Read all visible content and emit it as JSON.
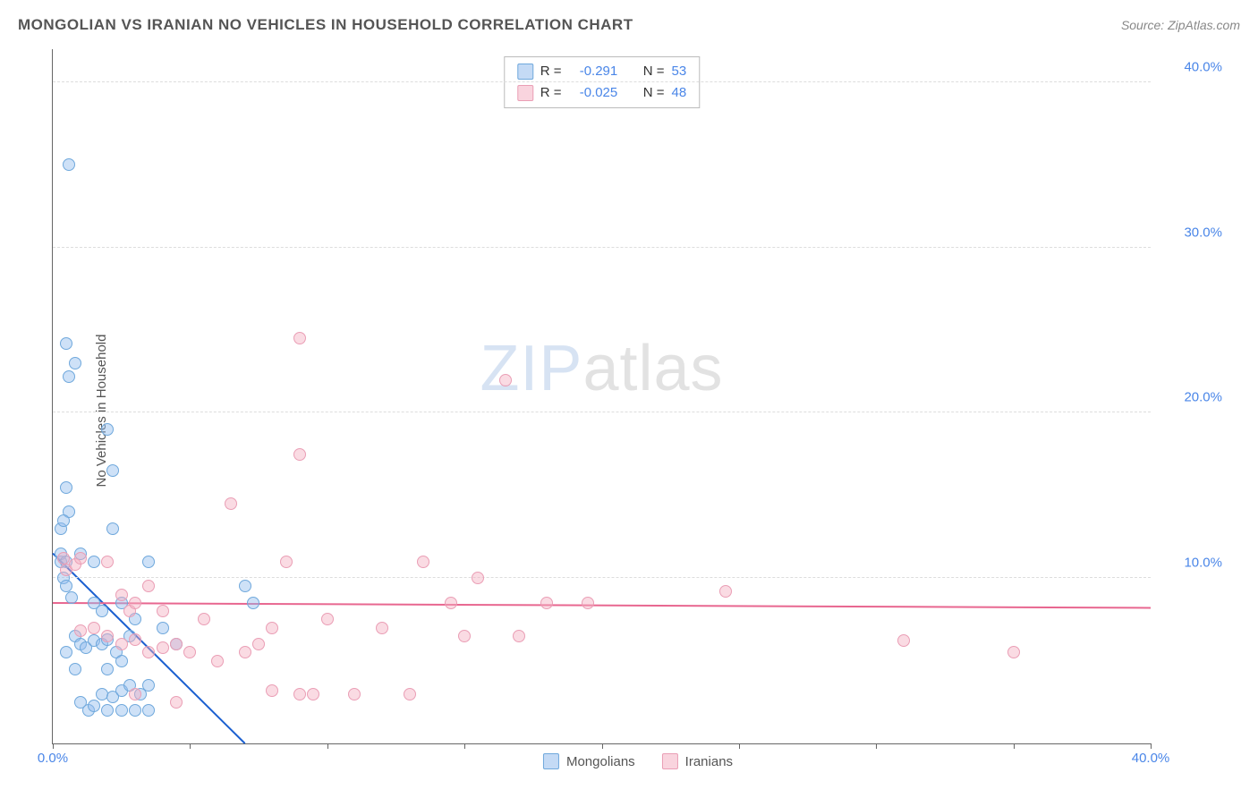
{
  "header": {
    "title": "MONGOLIAN VS IRANIAN NO VEHICLES IN HOUSEHOLD CORRELATION CHART",
    "source": "Source: ZipAtlas.com"
  },
  "chart": {
    "type": "scatter",
    "y_axis_label": "No Vehicles in Household",
    "xlim": [
      0,
      40
    ],
    "ylim": [
      0,
      42
    ],
    "x_ticks": [
      0,
      5,
      10,
      15,
      20,
      25,
      30,
      35,
      40
    ],
    "x_tick_labels": {
      "0": "0.0%",
      "40": "40.0%"
    },
    "y_gridlines": [
      10,
      20,
      30,
      40
    ],
    "y_tick_labels": {
      "10": "10.0%",
      "20": "20.0%",
      "30": "30.0%",
      "40": "40.0%"
    },
    "background_color": "#ffffff",
    "grid_color": "#dddddd",
    "axis_color": "#666666",
    "label_color": "#4a86e8",
    "marker_size": 14,
    "series": [
      {
        "name": "Mongolians",
        "fill": "rgba(147,188,237,0.45)",
        "stroke": "#6fa8dc",
        "trend_color": "#1a5fd0",
        "trend": {
          "x1": 0,
          "y1": 11.5,
          "x2": 7,
          "y2": 0
        },
        "R": "-0.291",
        "N": "53",
        "points": [
          [
            0.3,
            11.0
          ],
          [
            0.3,
            11.5
          ],
          [
            0.5,
            11.0
          ],
          [
            0.5,
            24.2
          ],
          [
            0.6,
            22.2
          ],
          [
            0.8,
            23.0
          ],
          [
            0.6,
            35.0
          ],
          [
            0.5,
            15.5
          ],
          [
            0.6,
            14.0
          ],
          [
            0.4,
            10.0
          ],
          [
            0.5,
            9.5
          ],
          [
            0.7,
            8.8
          ],
          [
            1.0,
            11.5
          ],
          [
            1.5,
            11.0
          ],
          [
            2.0,
            19.0
          ],
          [
            2.2,
            16.5
          ],
          [
            0.8,
            6.5
          ],
          [
            1.0,
            6.0
          ],
          [
            1.2,
            5.8
          ],
          [
            1.5,
            6.2
          ],
          [
            1.8,
            6.0
          ],
          [
            2.0,
            6.3
          ],
          [
            2.3,
            5.5
          ],
          [
            2.5,
            5.0
          ],
          [
            2.8,
            6.5
          ],
          [
            3.0,
            7.5
          ],
          [
            3.2,
            3.0
          ],
          [
            3.5,
            2.0
          ],
          [
            1.0,
            2.5
          ],
          [
            1.3,
            2.0
          ],
          [
            1.5,
            2.3
          ],
          [
            1.8,
            3.0
          ],
          [
            2.0,
            2.0
          ],
          [
            2.2,
            2.8
          ],
          [
            2.5,
            3.2
          ],
          [
            2.8,
            3.5
          ],
          [
            1.5,
            8.5
          ],
          [
            1.8,
            8.0
          ],
          [
            2.5,
            8.5
          ],
          [
            0.5,
            5.5
          ],
          [
            0.8,
            4.5
          ],
          [
            2.0,
            4.5
          ],
          [
            4.5,
            6.0
          ],
          [
            4.0,
            7.0
          ],
          [
            7.0,
            9.5
          ],
          [
            7.3,
            8.5
          ],
          [
            3.5,
            11.0
          ],
          [
            0.3,
            13.0
          ],
          [
            0.4,
            13.5
          ],
          [
            2.5,
            2.0
          ],
          [
            3.0,
            2.0
          ],
          [
            3.5,
            3.5
          ],
          [
            2.2,
            13.0
          ]
        ]
      },
      {
        "name": "Iranians",
        "fill": "rgba(244,176,194,0.45)",
        "stroke": "#ea9eb5",
        "trend_color": "#e86790",
        "trend": {
          "x1": 0,
          "y1": 8.5,
          "x2": 40,
          "y2": 8.2
        },
        "R": "-0.025",
        "N": "48",
        "points": [
          [
            0.4,
            11.2
          ],
          [
            0.5,
            10.5
          ],
          [
            0.8,
            10.8
          ],
          [
            1.0,
            11.2
          ],
          [
            2.0,
            11.0
          ],
          [
            2.5,
            9.0
          ],
          [
            2.8,
            8.0
          ],
          [
            3.0,
            8.5
          ],
          [
            1.5,
            7.0
          ],
          [
            2.0,
            6.5
          ],
          [
            2.5,
            6.0
          ],
          [
            3.0,
            6.3
          ],
          [
            3.5,
            5.5
          ],
          [
            4.0,
            5.8
          ],
          [
            4.5,
            6.0
          ],
          [
            5.0,
            5.5
          ],
          [
            5.5,
            7.5
          ],
          [
            6.0,
            5.0
          ],
          [
            6.5,
            14.5
          ],
          [
            7.0,
            5.5
          ],
          [
            7.5,
            6.0
          ],
          [
            8.0,
            7.0
          ],
          [
            8.5,
            11.0
          ],
          [
            9.0,
            17.5
          ],
          [
            9.0,
            24.5
          ],
          [
            9.5,
            3.0
          ],
          [
            10.0,
            7.5
          ],
          [
            11.0,
            3.0
          ],
          [
            12.0,
            7.0
          ],
          [
            13.0,
            3.0
          ],
          [
            13.5,
            11.0
          ],
          [
            14.5,
            8.5
          ],
          [
            15.0,
            6.5
          ],
          [
            15.5,
            10.0
          ],
          [
            16.5,
            22.0
          ],
          [
            17.0,
            6.5
          ],
          [
            18.0,
            8.5
          ],
          [
            19.5,
            8.5
          ],
          [
            24.5,
            9.2
          ],
          [
            31.0,
            6.2
          ],
          [
            35.0,
            5.5
          ],
          [
            8.0,
            3.2
          ],
          [
            9.0,
            3.0
          ],
          [
            4.5,
            2.5
          ],
          [
            3.0,
            3.0
          ],
          [
            3.5,
            9.5
          ],
          [
            4.0,
            8.0
          ],
          [
            1.0,
            6.8
          ]
        ]
      }
    ],
    "stats_box": {
      "rows": [
        {
          "series": 0,
          "r_label": "R =",
          "n_label": "N ="
        },
        {
          "series": 1,
          "r_label": "R =",
          "n_label": "N ="
        }
      ]
    },
    "bottom_legend": [
      {
        "series": 0
      },
      {
        "series": 1
      }
    ],
    "watermark": {
      "part1": "ZIP",
      "part2": "atlas"
    }
  }
}
